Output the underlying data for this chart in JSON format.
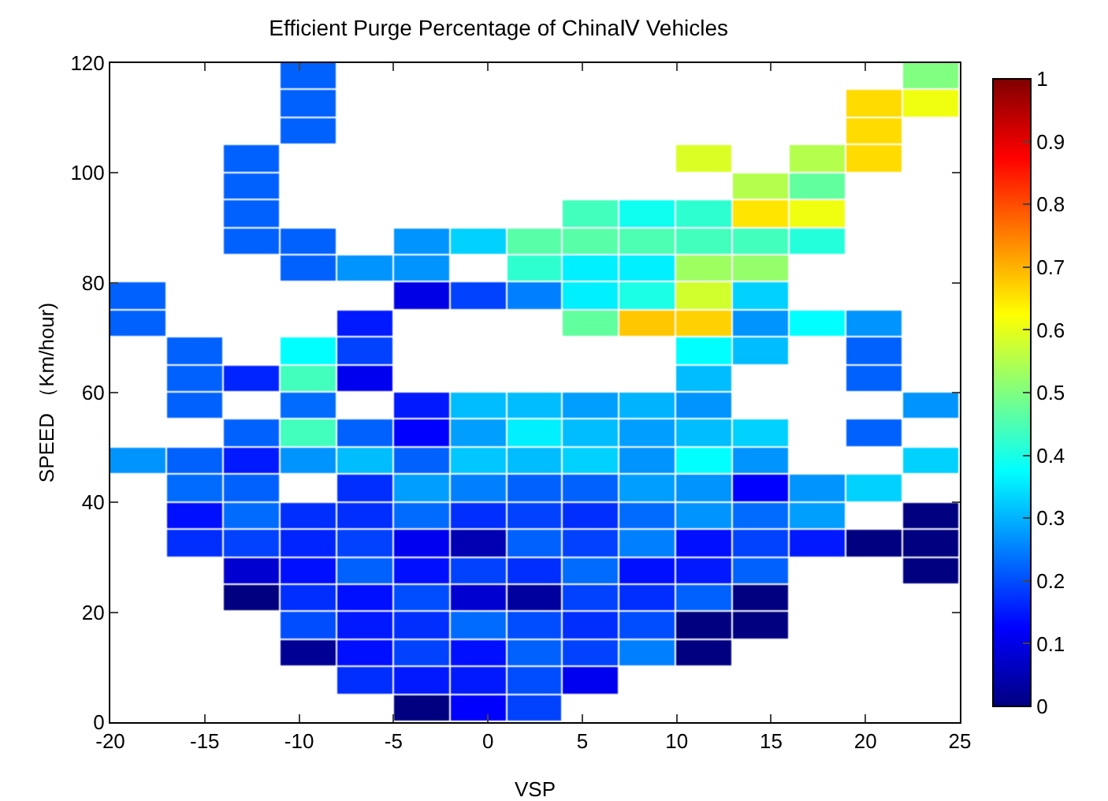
{
  "chart_data": {
    "type": "heatmap",
    "title": "Efficient Purge Percentage of ChinaⅣ Vehicles",
    "xlabel": "VSP",
    "ylabel": "SPEED （Km/hour)",
    "x": [
      -18.5,
      -15.5,
      -12.5,
      -9.5,
      -6.5,
      -3.5,
      -0.5,
      2.5,
      5.5,
      8.5,
      11.5,
      14.5,
      17.5,
      20.5,
      23.5
    ],
    "cells": [
      [
        null,
        null,
        null,
        0.22,
        null,
        null,
        null,
        null,
        null,
        null,
        null,
        null,
        null,
        null,
        0.5
      ],
      [
        null,
        null,
        null,
        0.22,
        null,
        null,
        null,
        null,
        null,
        null,
        null,
        null,
        null,
        0.66,
        0.61
      ],
      [
        null,
        null,
        null,
        0.22,
        null,
        null,
        null,
        null,
        null,
        null,
        null,
        null,
        null,
        0.66,
        null
      ],
      [
        null,
        null,
        0.22,
        null,
        null,
        null,
        null,
        null,
        null,
        null,
        0.59,
        null,
        0.55,
        0.66,
        null
      ],
      [
        null,
        null,
        0.22,
        null,
        null,
        null,
        null,
        null,
        null,
        null,
        null,
        0.55,
        0.47,
        null,
        null
      ],
      [
        null,
        null,
        0.22,
        null,
        null,
        null,
        null,
        null,
        0.44,
        0.39,
        0.42,
        0.65,
        0.61,
        null,
        null
      ],
      [
        null,
        null,
        0.22,
        0.22,
        null,
        0.27,
        0.33,
        0.46,
        0.46,
        0.45,
        0.44,
        0.44,
        0.41,
        null,
        null
      ],
      [
        null,
        null,
        null,
        0.22,
        0.27,
        0.27,
        null,
        0.42,
        0.36,
        0.36,
        0.53,
        0.52,
        null,
        null,
        null
      ],
      [
        0.22,
        null,
        null,
        null,
        null,
        0.1,
        0.19,
        0.25,
        0.36,
        0.4,
        0.58,
        0.33,
        null,
        null,
        null
      ],
      [
        0.22,
        null,
        null,
        null,
        0.15,
        null,
        null,
        null,
        0.47,
        0.68,
        0.67,
        0.27,
        0.375,
        0.27,
        null
      ],
      [
        null,
        0.22,
        null,
        0.375,
        0.19,
        null,
        null,
        null,
        null,
        null,
        0.375,
        0.31,
        null,
        0.22,
        null
      ],
      [
        null,
        0.22,
        0.16,
        0.44,
        0.11,
        null,
        null,
        null,
        null,
        null,
        0.31,
        null,
        null,
        0.22,
        null
      ],
      [
        null,
        0.22,
        null,
        0.23,
        null,
        0.15,
        0.31,
        0.31,
        0.28,
        0.3,
        0.27,
        null,
        null,
        null,
        0.27
      ],
      [
        null,
        null,
        0.22,
        0.44,
        0.22,
        0.125,
        0.28,
        0.36,
        0.31,
        0.28,
        0.31,
        0.33,
        null,
        0.22,
        null
      ],
      [
        0.27,
        0.22,
        0.15,
        0.27,
        0.31,
        0.22,
        0.32,
        0.31,
        0.33,
        0.27,
        0.375,
        0.27,
        null,
        null,
        0.33
      ],
      [
        null,
        0.23,
        0.22,
        null,
        0.17,
        0.28,
        0.25,
        0.22,
        0.22,
        0.28,
        0.27,
        0.125,
        0.27,
        0.33,
        null
      ],
      [
        null,
        0.14,
        0.23,
        0.17,
        0.17,
        0.23,
        0.17,
        0.19,
        0.17,
        0.23,
        0.27,
        0.23,
        0.28,
        null,
        0
      ],
      [
        null,
        0.17,
        0.19,
        0.16,
        0.19,
        0.11,
        0.05,
        0.22,
        0.19,
        0.25,
        0.14,
        0.19,
        0.15,
        0,
        0
      ],
      [
        null,
        null,
        0.08,
        0.14,
        0.22,
        0.14,
        0.19,
        0.17,
        0.23,
        0.14,
        0.15,
        0.22,
        null,
        null,
        0
      ],
      [
        null,
        null,
        0,
        0.17,
        0.14,
        0.2,
        0.08,
        0.03,
        0.19,
        0.17,
        0.22,
        0,
        null,
        null,
        null
      ],
      [
        null,
        null,
        null,
        0.2,
        0.15,
        0.17,
        0.23,
        0.2,
        0.17,
        0.2,
        0,
        0,
        null,
        null,
        null
      ],
      [
        null,
        null,
        null,
        0.02,
        0.14,
        0.19,
        0.14,
        0.22,
        0.19,
        0.25,
        0,
        null,
        null,
        null,
        null
      ],
      [
        null,
        null,
        null,
        null,
        0.17,
        0.15,
        0.15,
        0.2,
        0.11,
        null,
        null,
        null,
        null,
        null,
        null
      ],
      [
        null,
        null,
        null,
        null,
        null,
        0,
        0.125,
        0.19,
        null,
        null,
        null,
        null,
        null,
        null,
        null
      ]
    ],
    "clim": [
      0,
      1
    ],
    "cticks": [
      0,
      0.1,
      0.2,
      0.3,
      0.4,
      0.5,
      0.6,
      0.7,
      0.8,
      0.9,
      1
    ],
    "xlim": [
      -20,
      25
    ],
    "xticks": [
      -20,
      -15,
      -10,
      -5,
      0,
      5,
      10,
      15,
      20,
      25
    ],
    "ylim": [
      0,
      120
    ],
    "yticks": [
      0,
      20,
      40,
      60,
      80,
      100,
      120
    ],
    "grid": false
  }
}
